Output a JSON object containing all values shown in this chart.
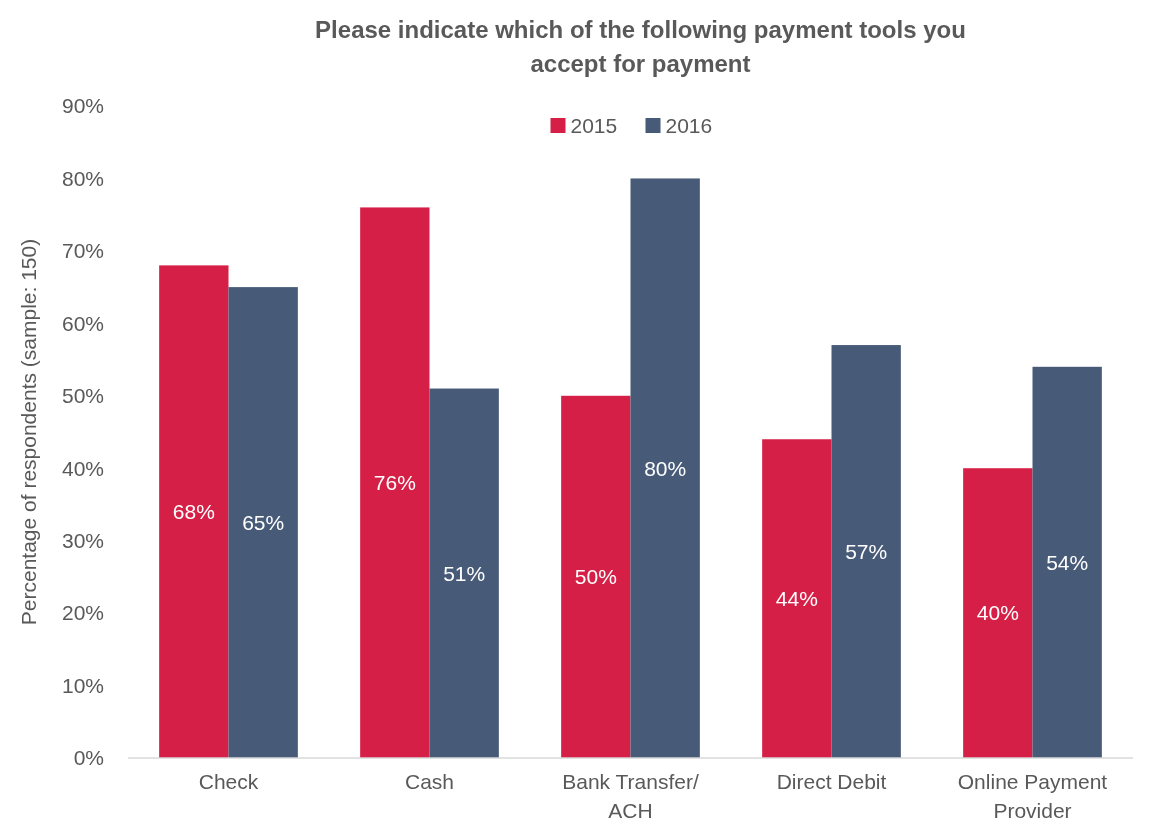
{
  "chart_data": {
    "type": "bar",
    "title": "Please indicate which of the following payment tools you accept for payment",
    "ylabel": "Percentage of respondents (sample: 150)",
    "categories": [
      "Check",
      "Cash",
      "Bank Transfer/ ACH",
      "Direct Debit",
      "Online Payment Provider"
    ],
    "series": [
      {
        "name": "2015",
        "color": "#d61f47",
        "values": [
          68,
          76,
          50,
          44,
          40
        ],
        "value_labels": [
          "68%",
          "76%",
          "50%",
          "44%",
          "40%"
        ]
      },
      {
        "name": "2016",
        "color": "#475a78",
        "values": [
          65,
          51,
          80,
          57,
          54
        ],
        "value_labels": [
          "65%",
          "51%",
          "80%",
          "57%",
          "54%"
        ]
      }
    ],
    "ylim": [
      0,
      90
    ],
    "yticks": [
      {
        "value": 0,
        "label": "0%"
      },
      {
        "value": 10,
        "label": "10%"
      },
      {
        "value": 20,
        "label": "20%"
      },
      {
        "value": 30,
        "label": "30%"
      },
      {
        "value": 40,
        "label": "40%"
      },
      {
        "value": 50,
        "label": "50%"
      },
      {
        "value": 60,
        "label": "60%"
      },
      {
        "value": 70,
        "label": "70%"
      },
      {
        "value": 80,
        "label": "80%"
      },
      {
        "value": 90,
        "label": "90%"
      }
    ],
    "grid": false,
    "legend": "top"
  }
}
